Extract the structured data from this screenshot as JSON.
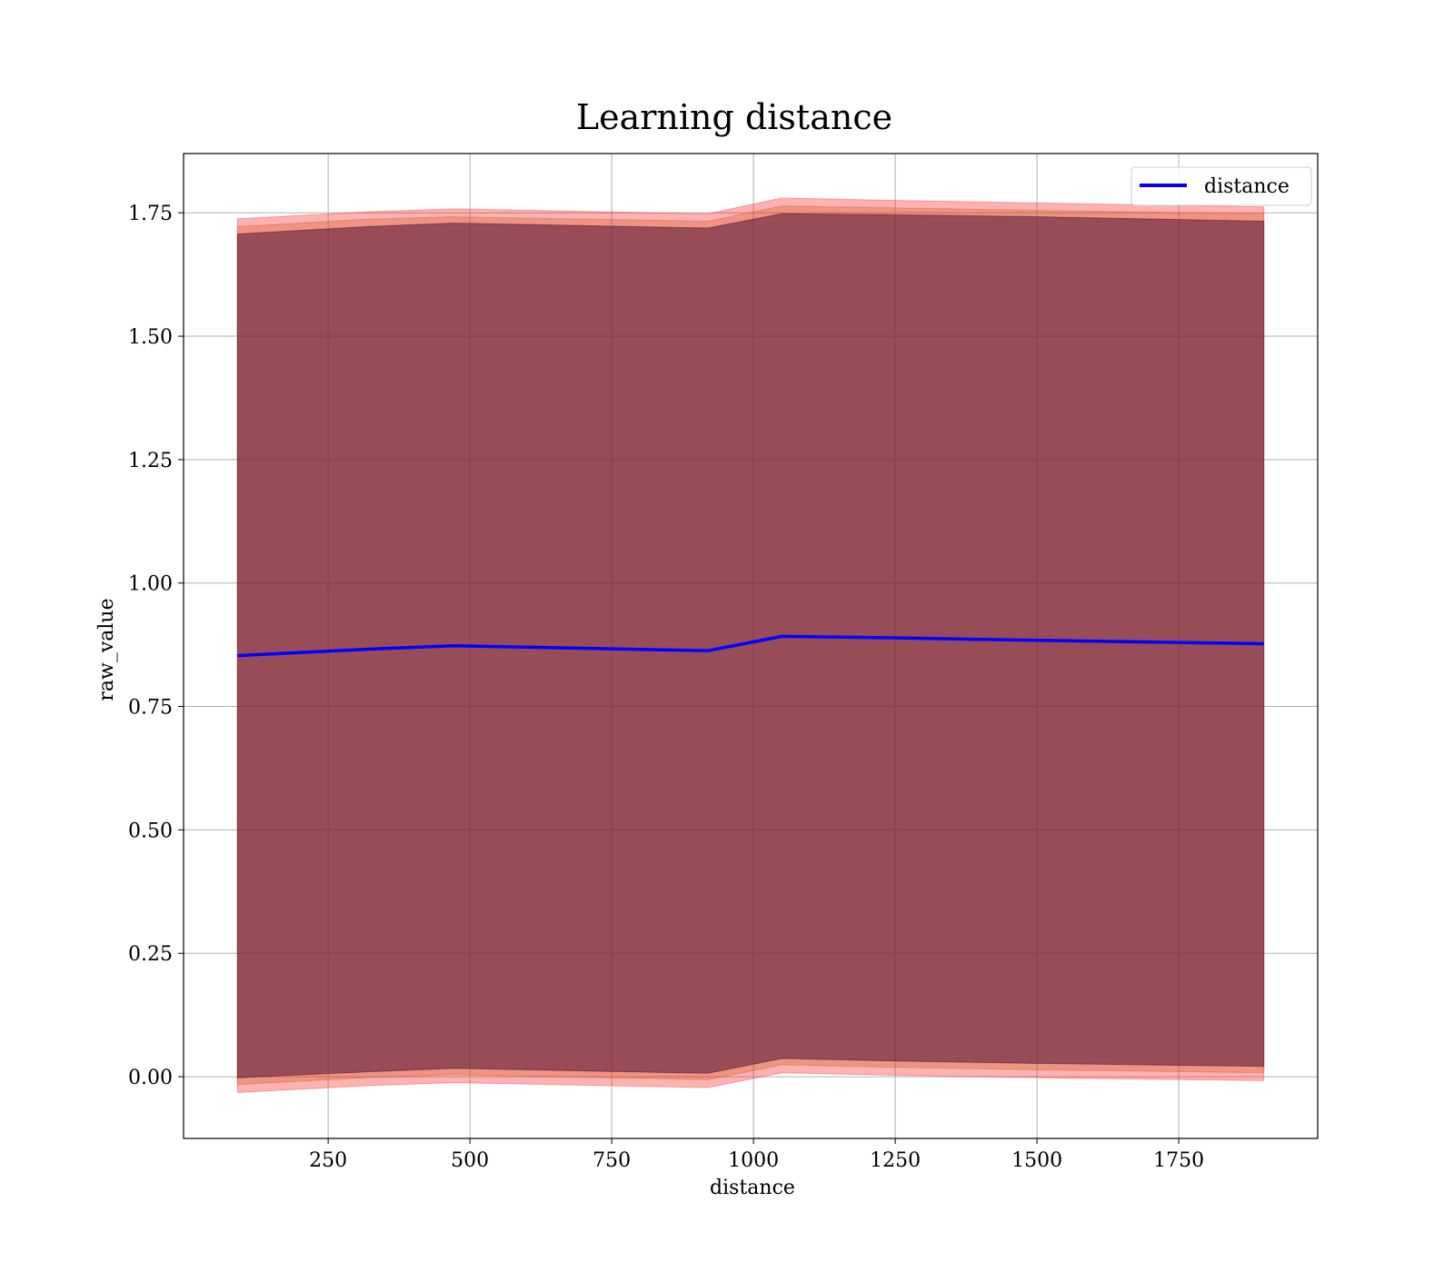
{
  "chart_data": {
    "type": "line",
    "title": "Learning distance",
    "xlabel": "distance",
    "ylabel": "raw_value",
    "xlim": [
      -5,
      1995
    ],
    "ylim": [
      -0.125,
      1.87
    ],
    "xticks": [
      250,
      500,
      750,
      1000,
      1250,
      1500,
      1750
    ],
    "xtick_labels": [
      "250",
      "500",
      "750",
      "1000",
      "1250",
      "1500",
      "1750"
    ],
    "yticks": [
      0.0,
      0.25,
      0.5,
      0.75,
      1.0,
      1.25,
      1.5,
      1.75
    ],
    "ytick_labels": [
      "0.00",
      "0.25",
      "0.50",
      "0.75",
      "1.00",
      "1.25",
      "1.50",
      "1.75"
    ],
    "grid": true,
    "legend_position": "top-right",
    "x": [
      90,
      320,
      470,
      920,
      1050,
      1250,
      1500,
      1900
    ],
    "series": [
      {
        "name": "distance",
        "color": "#0000ff",
        "values": [
          0.853,
          0.866,
          0.873,
          0.863,
          0.892,
          0.889,
          0.884,
          0.877
        ]
      }
    ],
    "bands": [
      {
        "color": "#ff0000",
        "opacity": 0.3,
        "upper": [
          1.738,
          1.752,
          1.758,
          1.748,
          1.78,
          1.775,
          1.77,
          1.762
        ],
        "lower": [
          -0.032,
          -0.018,
          -0.012,
          -0.022,
          0.008,
          0.003,
          -0.002,
          -0.008
        ]
      },
      {
        "color": "#d05a28",
        "opacity": 0.35,
        "upper": [
          1.722,
          1.737,
          1.742,
          1.733,
          1.764,
          1.76,
          1.755,
          1.748
        ],
        "lower": [
          -0.016,
          -0.002,
          0.004,
          -0.006,
          0.024,
          0.019,
          0.014,
          0.008
        ]
      },
      {
        "color": "#5b1c3a",
        "opacity": 0.6,
        "upper": [
          1.707,
          1.722,
          1.729,
          1.719,
          1.748,
          1.746,
          1.742,
          1.733
        ],
        "lower": [
          -0.002,
          0.01,
          0.017,
          0.007,
          0.037,
          0.032,
          0.027,
          0.021
        ]
      }
    ]
  }
}
